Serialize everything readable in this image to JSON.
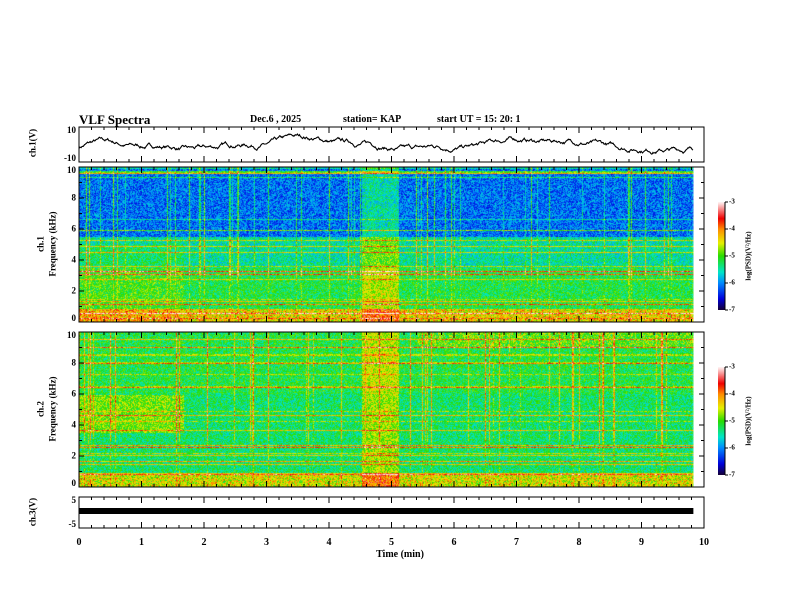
{
  "header": {
    "title": "VLF Spectra",
    "date": "Dec.6  , 2025",
    "station": "station= KAP",
    "start": "start  UT =   15: 20: 1"
  },
  "chart_data": [
    {
      "type": "line",
      "name": "ch1-waveform",
      "ylabel": "ch.1(V)",
      "ylim": [
        -10,
        10
      ],
      "yticks": [
        "10",
        "-10"
      ],
      "xlim": [
        0,
        10
      ]
    },
    {
      "type": "heatmap",
      "name": "ch1-spectrogram",
      "ylabel": "ch.1\nFrequency (kHz)",
      "ylabel_ch": "ch.1",
      "ylabel_f": "Frequency (kHz)",
      "ylim": [
        0,
        10
      ],
      "yticks": [
        "0",
        "2",
        "4",
        "6",
        "8",
        "10"
      ],
      "xlim": [
        0,
        10
      ],
      "colorbar": {
        "label": "log(PSD)(V²/Hz)",
        "range": [
          -7,
          -3
        ],
        "ticks": [
          "-3",
          "-4",
          "-5",
          "-6",
          "-7"
        ]
      }
    },
    {
      "type": "heatmap",
      "name": "ch2-spectrogram",
      "ylabel_ch": "ch.2",
      "ylabel_f": "Frequency (kHz)",
      "ylim": [
        0,
        10
      ],
      "yticks": [
        "0",
        "2",
        "4",
        "6",
        "8",
        "10"
      ],
      "xlim": [
        0,
        10
      ],
      "colorbar": {
        "label": "log(PSD)(V²/Hz)",
        "range": [
          -7,
          -3
        ],
        "ticks": [
          "-3",
          "-4",
          "-5",
          "-6",
          "-7"
        ]
      }
    },
    {
      "type": "line",
      "name": "ch3-waveform",
      "ylabel": "ch.3(V)",
      "ylim": [
        -5,
        5
      ],
      "yticks": [
        "5",
        "-5"
      ],
      "xlim": [
        0,
        10
      ],
      "level": -1.5
    }
  ],
  "xaxis": {
    "label": "Time (min)",
    "ticks": [
      "0",
      "1",
      "2",
      "3",
      "4",
      "5",
      "6",
      "7",
      "8",
      "9",
      "10"
    ],
    "data_end": 9.83
  }
}
